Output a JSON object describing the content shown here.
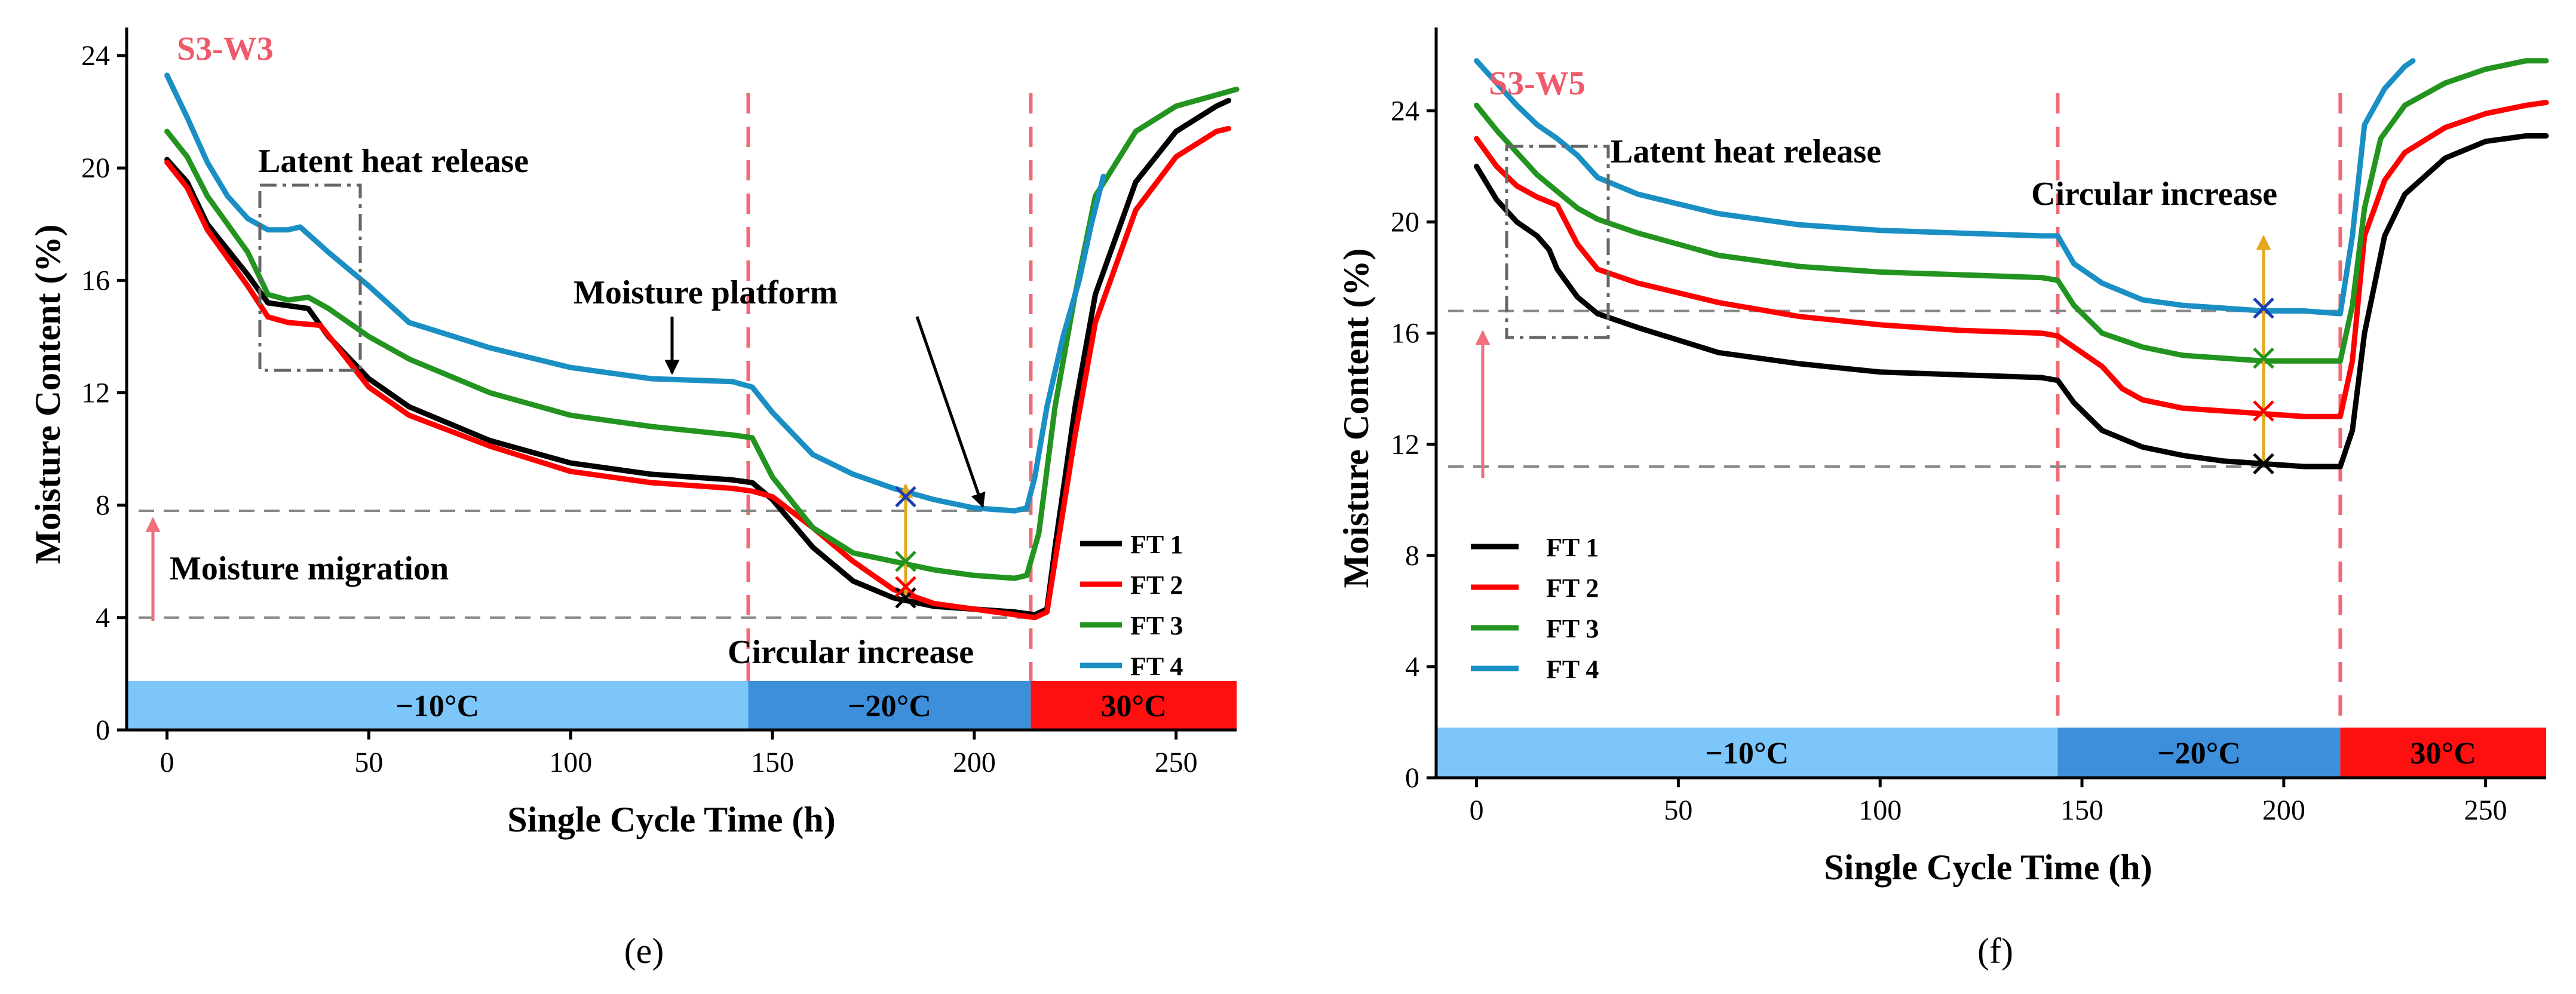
{
  "chart_data": [
    {
      "type": "line",
      "panel_caption": "(e)",
      "sample_label": "S3-W3",
      "xlabel": "Single Cycle Time (h)",
      "ylabel": "Moisture Content (%)",
      "xlim": [
        -10,
        265
      ],
      "ylim": [
        0,
        25
      ],
      "xticks": [
        0,
        50,
        100,
        150,
        200,
        250
      ],
      "xtick_labels": [
        "0",
        "50",
        "100",
        "150",
        "200",
        "250"
      ],
      "yticks": [
        0,
        4,
        8,
        12,
        16,
        20,
        24
      ],
      "ytick_labels": [
        "0",
        "4",
        "8",
        "12",
        "16",
        "20",
        "24"
      ],
      "legend_position": "right, above temperature bands",
      "series": [
        {
          "name": "FT 1",
          "color": "#000000",
          "x": [
            0,
            5,
            10,
            20,
            25,
            35,
            40,
            50,
            60,
            80,
            100,
            120,
            140,
            145,
            150,
            160,
            170,
            180,
            190,
            200,
            210,
            215,
            218,
            220,
            225,
            230,
            240,
            250,
            260,
            263
          ],
          "y": [
            20.3,
            19.5,
            18.0,
            16.2,
            15.2,
            15.0,
            14.0,
            12.5,
            11.5,
            10.3,
            9.5,
            9.1,
            8.9,
            8.8,
            8.2,
            6.5,
            5.3,
            4.7,
            4.4,
            4.3,
            4.2,
            4.1,
            4.3,
            6.5,
            11.5,
            15.5,
            19.5,
            21.3,
            22.2,
            22.4
          ]
        },
        {
          "name": "FT 2",
          "color": "#ff0000",
          "x": [
            0,
            5,
            10,
            20,
            25,
            30,
            38,
            50,
            60,
            80,
            100,
            120,
            140,
            145,
            150,
            160,
            170,
            180,
            190,
            200,
            210,
            215,
            218,
            220,
            225,
            230,
            240,
            250,
            260,
            263
          ],
          "y": [
            20.2,
            19.3,
            17.8,
            15.8,
            14.7,
            14.5,
            14.4,
            12.2,
            11.2,
            10.1,
            9.2,
            8.8,
            8.6,
            8.5,
            8.3,
            7.2,
            6.0,
            5.0,
            4.5,
            4.3,
            4.1,
            4.0,
            4.2,
            6.0,
            10.5,
            14.5,
            18.5,
            20.4,
            21.3,
            21.4
          ]
        },
        {
          "name": "FT 3",
          "color": "#22941f",
          "x": [
            0,
            5,
            10,
            20,
            25,
            30,
            35,
            40,
            50,
            60,
            80,
            100,
            120,
            140,
            145,
            150,
            160,
            170,
            180,
            190,
            200,
            210,
            213,
            216,
            220,
            225,
            230,
            240,
            250,
            260,
            265
          ],
          "y": [
            21.3,
            20.4,
            19.0,
            17.0,
            15.5,
            15.3,
            15.4,
            15.0,
            14.0,
            13.2,
            12.0,
            11.2,
            10.8,
            10.5,
            10.4,
            9.0,
            7.2,
            6.3,
            6.0,
            5.7,
            5.5,
            5.4,
            5.5,
            7.0,
            11.5,
            15.5,
            19.0,
            21.3,
            22.2,
            22.6,
            22.8
          ]
        },
        {
          "name": "FT 4",
          "color": "#1a8fc4",
          "x": [
            0,
            5,
            10,
            15,
            20,
            25,
            30,
            33,
            40,
            50,
            60,
            80,
            100,
            120,
            140,
            145,
            150,
            160,
            170,
            180,
            190,
            200,
            210,
            213,
            215,
            218,
            222,
            226,
            229,
            232
          ],
          "y": [
            23.3,
            21.8,
            20.2,
            19.0,
            18.2,
            17.8,
            17.8,
            17.9,
            17.0,
            15.8,
            14.5,
            13.6,
            12.9,
            12.5,
            12.4,
            12.2,
            11.3,
            9.8,
            9.1,
            8.6,
            8.2,
            7.9,
            7.8,
            7.9,
            9.0,
            11.5,
            14.0,
            16.0,
            18.0,
            19.7
          ]
        }
      ],
      "moisture_markers_h": 183,
      "markers_y": [
        4.7,
        5.1,
        6.0,
        8.3
      ],
      "dashed_refs": {
        "horizontal_y": [
          7.8,
          4.0
        ],
        "vertical_x": [
          144,
          214
        ]
      },
      "temperature_bands": [
        {
          "label": "−10°C",
          "start": -10,
          "end": 144,
          "color": "#7cc6fa"
        },
        {
          "label": "−20°C",
          "start": 144,
          "end": 214,
          "color": "#3d8fdb"
        },
        {
          "label": "30°C",
          "start": 214,
          "end": 265,
          "color": "#ff1010"
        }
      ],
      "annotations": {
        "latent_heat": "Latent heat release",
        "platform": "Moisture platform",
        "migration": "Moisture migration",
        "circular": "Circular increase"
      }
    },
    {
      "type": "line",
      "panel_caption": "(f)",
      "sample_label": "S3-W5",
      "xlabel": "Single Cycle Time (h)",
      "ylabel": "Moisture Content (%)",
      "xlim": [
        -10,
        265
      ],
      "ylim": [
        0,
        27
      ],
      "xticks": [
        0,
        50,
        100,
        150,
        200,
        250
      ],
      "xtick_labels": [
        "0",
        "50",
        "100",
        "150",
        "200",
        "250"
      ],
      "yticks": [
        0,
        4,
        8,
        12,
        16,
        20,
        24
      ],
      "ytick_labels": [
        "0",
        "4",
        "8",
        "12",
        "16",
        "20",
        "24"
      ],
      "legend_position": "left-middle",
      "series": [
        {
          "name": "FT 1",
          "color": "#000000",
          "x": [
            0,
            5,
            10,
            15,
            18,
            20,
            25,
            30,
            40,
            60,
            80,
            100,
            120,
            140,
            144,
            148,
            155,
            165,
            175,
            185,
            195,
            205,
            214,
            217,
            220,
            225,
            230,
            240,
            250,
            260,
            265
          ],
          "y": [
            22.0,
            20.8,
            20.0,
            19.5,
            19.0,
            18.3,
            17.3,
            16.7,
            16.2,
            15.3,
            14.9,
            14.6,
            14.5,
            14.4,
            14.3,
            13.5,
            12.5,
            11.9,
            11.6,
            11.4,
            11.3,
            11.2,
            11.2,
            12.5,
            16.0,
            19.5,
            21.0,
            22.3,
            22.9,
            23.1,
            23.1
          ]
        },
        {
          "name": "FT 2",
          "color": "#ff0000",
          "x": [
            0,
            5,
            10,
            15,
            20,
            25,
            30,
            40,
            60,
            80,
            100,
            120,
            140,
            144,
            148,
            155,
            160,
            165,
            175,
            185,
            195,
            205,
            214,
            217,
            220,
            225,
            230,
            240,
            250,
            260,
            265
          ],
          "y": [
            23.0,
            22.0,
            21.3,
            20.9,
            20.6,
            19.2,
            18.3,
            17.8,
            17.1,
            16.6,
            16.3,
            16.1,
            16.0,
            15.9,
            15.5,
            14.8,
            14.0,
            13.6,
            13.3,
            13.2,
            13.1,
            13.0,
            13.0,
            15.0,
            19.5,
            21.5,
            22.5,
            23.4,
            23.9,
            24.2,
            24.3
          ]
        },
        {
          "name": "FT 3",
          "color": "#22941f",
          "x": [
            0,
            5,
            10,
            15,
            20,
            25,
            30,
            40,
            60,
            80,
            100,
            120,
            140,
            144,
            148,
            155,
            165,
            175,
            185,
            195,
            205,
            214,
            217,
            220,
            224,
            230,
            240,
            250,
            260,
            265
          ],
          "y": [
            24.2,
            23.3,
            22.5,
            21.7,
            21.1,
            20.5,
            20.1,
            19.6,
            18.8,
            18.4,
            18.2,
            18.1,
            18.0,
            17.9,
            17.0,
            16.0,
            15.5,
            15.2,
            15.1,
            15.0,
            15.0,
            15.0,
            17.0,
            20.5,
            23.0,
            24.2,
            25.0,
            25.5,
            25.8,
            25.8
          ]
        },
        {
          "name": "FT 4",
          "color": "#1a8fc4",
          "x": [
            0,
            5,
            10,
            15,
            20,
            25,
            30,
            40,
            60,
            80,
            100,
            120,
            140,
            144,
            148,
            155,
            165,
            175,
            185,
            195,
            205,
            214,
            217,
            220,
            225,
            230,
            232
          ],
          "y": [
            25.8,
            25.0,
            24.2,
            23.5,
            23.0,
            22.4,
            21.6,
            21.0,
            20.3,
            19.9,
            19.7,
            19.6,
            19.5,
            19.5,
            18.5,
            17.8,
            17.2,
            17.0,
            16.9,
            16.8,
            16.8,
            16.7,
            19.5,
            23.5,
            24.8,
            25.6,
            25.8
          ]
        }
      ],
      "moisture_markers_h": 195,
      "markers_y": [
        11.3,
        13.2,
        15.1,
        16.9
      ],
      "dashed_refs": {
        "horizontal_y": [
          16.8,
          11.2
        ],
        "vertical_x": [
          144,
          214
        ]
      },
      "temperature_bands": [
        {
          "label": "−10°C",
          "start": -10,
          "end": 144,
          "color": "#7cc6fa"
        },
        {
          "label": "−20°C",
          "start": 144,
          "end": 214,
          "color": "#3d8fdb"
        },
        {
          "label": "30°C",
          "start": 214,
          "end": 265,
          "color": "#ff1010"
        }
      ],
      "annotations": {
        "latent_heat": "Latent heat release",
        "circular": "Circular increase"
      }
    }
  ]
}
